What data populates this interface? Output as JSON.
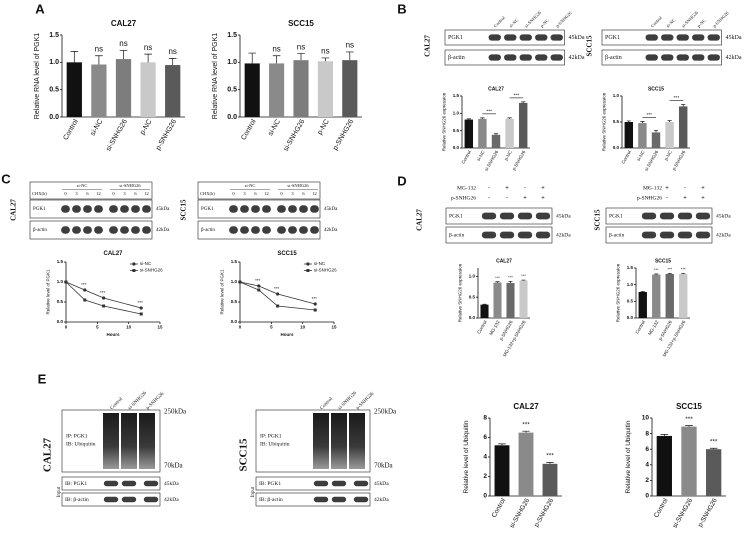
{
  "panel_labels": [
    "A",
    "B",
    "C",
    "D",
    "E"
  ],
  "chart_data": [
    {
      "type": "bar",
      "title": "CAL27",
      "ylabel": "Relative RNA level of PGK1",
      "categories": [
        "Control",
        "si-NC",
        "si-SNHG26",
        "p-NC",
        "p-SNHG26"
      ],
      "values": [
        1.0,
        0.96,
        1.06,
        1.0,
        0.95
      ],
      "errors": [
        0.2,
        0.16,
        0.16,
        0.15,
        0.12
      ],
      "colors": [
        "#111111",
        "#8a8a8a",
        "#7d7d7d",
        "#c9c9c9",
        "#5a5a5a"
      ],
      "ylim": [
        0,
        1.5
      ],
      "yticks": [
        {
          "value": 0,
          "label": "0.0"
        },
        0.5,
        {
          "value": 1,
          "label": "1.0"
        },
        1.5
      ],
      "annotations": [
        null,
        "ns",
        "ns",
        "ns",
        "ns"
      ]
    },
    {
      "type": "bar",
      "title": "SCC15",
      "ylabel": "Relative RNA level of PGK1",
      "categories": [
        "Control",
        "si-NC",
        "si-SNHG26",
        "p-NC",
        "p-SNHG26"
      ],
      "values": [
        0.98,
        0.98,
        1.04,
        1.02,
        1.04
      ],
      "errors": [
        0.19,
        0.14,
        0.12,
        0.06,
        0.15
      ],
      "colors": [
        "#111111",
        "#8a8a8a",
        "#7d7d7d",
        "#c9c9c9",
        "#5a5a5a"
      ],
      "ylim": [
        0,
        1.5
      ],
      "yticks": [
        {
          "value": 0,
          "label": "0.0"
        },
        0.5,
        {
          "value": 1,
          "label": "1.0"
        },
        1.5
      ],
      "annotations": [
        null,
        "ns",
        "ns",
        "ns",
        "ns"
      ]
    },
    {
      "type": "bar",
      "title": "CAL27",
      "ylabel": "Relative SNHG26 expression",
      "categories": [
        "Control",
        "si-NC",
        "si-SNHG26",
        "p-NC",
        "p-SNHG26"
      ],
      "values": [
        0.82,
        0.84,
        0.38,
        0.84,
        1.3
      ],
      "errors": [
        0.02,
        0.03,
        0.03,
        0.03,
        0.03
      ],
      "colors": [
        "#111111",
        "#8a8a8a",
        "#6a6a6a",
        "#c9c9c9",
        "#5a5a5a"
      ],
      "ylim": [
        0,
        1.5
      ],
      "yticks": [
        {
          "value": 0,
          "label": "0.0"
        },
        0.5,
        {
          "value": 1,
          "label": "1.0"
        },
        1.5
      ],
      "annotations": [
        null,
        null,
        "***",
        null,
        "***"
      ],
      "brackets": true
    },
    {
      "type": "bar",
      "title": "SCC15",
      "ylabel": "Relative SNHG26 expression",
      "categories": [
        "Control",
        "si-NC",
        "si-SNHG26",
        "p-NC",
        "p-SNHG26"
      ],
      "values": [
        0.5,
        0.48,
        0.3,
        0.5,
        0.8
      ],
      "errors": [
        0.02,
        0.03,
        0.04,
        0.03,
        0.04
      ],
      "colors": [
        "#111111",
        "#8a8a8a",
        "#6a6a6a",
        "#c9c9c9",
        "#5a5a5a"
      ],
      "ylim": [
        0,
        1
      ],
      "yticks": [
        {
          "value": 0,
          "label": "0.0"
        },
        0.5,
        {
          "value": 1,
          "label": "1.0"
        }
      ],
      "annotations": [
        null,
        null,
        "***",
        null,
        "***"
      ],
      "brackets": true
    },
    {
      "type": "line",
      "title": "CAL27",
      "xlabel": "Hours",
      "ylabel": "Relative level of PGK1",
      "x": [
        0,
        3,
        6,
        12
      ],
      "series": [
        {
          "name": "si-NC",
          "color": "#333333",
          "marker": "circle",
          "values": [
            1.0,
            0.8,
            0.6,
            0.35
          ]
        },
        {
          "name": "si-SNHG26",
          "color": "#333333",
          "marker": "square",
          "values": [
            1.0,
            0.55,
            0.4,
            0.2
          ]
        }
      ],
      "xlim": [
        0,
        15
      ],
      "xticks": [
        0,
        5,
        10,
        15
      ],
      "ylim": [
        0,
        1.5
      ],
      "yticks": [
        {
          "value": 0,
          "label": "0.0"
        },
        0.5,
        {
          "value": 1,
          "label": "1.0"
        },
        1.5
      ],
      "legend": "upper right",
      "annotations": [
        null,
        "***",
        "***",
        "***"
      ]
    },
    {
      "type": "line",
      "title": "SCC15",
      "xlabel": "Hours",
      "ylabel": "Relative level of PGK1",
      "x": [
        0,
        3,
        6,
        12
      ],
      "series": [
        {
          "name": "si-NC",
          "color": "#333333",
          "marker": "circle",
          "values": [
            1.0,
            0.9,
            0.7,
            0.45
          ]
        },
        {
          "name": "si-SNHG26",
          "color": "#333333",
          "marker": "square",
          "values": [
            1.0,
            0.8,
            0.4,
            0.3
          ]
        }
      ],
      "xlim": [
        0,
        15
      ],
      "xticks": [
        0,
        5,
        10,
        15
      ],
      "ylim": [
        0,
        1.5
      ],
      "yticks": [
        {
          "value": 0,
          "label": "0.0"
        },
        0.5,
        {
          "value": 1,
          "label": "1.0"
        },
        1.5
      ],
      "legend": "upper right",
      "annotations": [
        null,
        "***",
        "***",
        "***"
      ]
    },
    {
      "type": "bar",
      "title": "CAL27",
      "ylabel": "Relative SNHG26 expression",
      "categories": [
        "Control",
        "MG-132",
        "p-SNHG26",
        "MG-132+p-SNHG26"
      ],
      "values": [
        0.32,
        0.85,
        0.84,
        0.9
      ],
      "errors": [
        0.01,
        0.02,
        0.04,
        0.01
      ],
      "colors": [
        "#111111",
        "#8a8a8a",
        "#6a6a6a",
        "#c9c9c9"
      ],
      "ylim": [
        0,
        1.2
      ],
      "yticks": [
        {
          "value": 0,
          "label": "0.0"
        },
        0.5,
        {
          "value": 1,
          "label": "1.0"
        }
      ],
      "annotations": [
        null,
        "***",
        "***",
        "***"
      ]
    },
    {
      "type": "bar",
      "title": "SCC15",
      "ylabel": "Relative SNHG26 expression",
      "categories": [
        "Control",
        "MG-132",
        "p-SNHG26",
        "MG-132+p-SNHG26"
      ],
      "values": [
        0.78,
        1.3,
        1.32,
        1.32
      ],
      "errors": [
        0.02,
        0.02,
        0.02,
        0.02
      ],
      "colors": [
        "#111111",
        "#8a8a8a",
        "#6a6a6a",
        "#c9c9c9"
      ],
      "ylim": [
        0,
        1.5
      ],
      "yticks": [
        {
          "value": 0,
          "label": "0.0"
        },
        0.5,
        {
          "value": 1,
          "label": "1.0"
        },
        1.5
      ],
      "annotations": [
        null,
        "***",
        "***",
        "***"
      ]
    },
    {
      "type": "bar",
      "title": "CAL27",
      "ylabel": "Relative level of Ubiquitin",
      "categories": [
        "Control",
        "si-SNHG26",
        "p-SNHG26"
      ],
      "values": [
        5.2,
        6.5,
        3.3
      ],
      "errors": [
        0.15,
        0.15,
        0.15
      ],
      "colors": [
        "#111111",
        "#8a8a8a",
        "#5a5a5a"
      ],
      "ylim": [
        0,
        8
      ],
      "yticks": [
        0,
        2,
        4,
        6,
        8
      ],
      "annotations": [
        null,
        "***",
        "***"
      ]
    },
    {
      "type": "bar",
      "title": "SCC15",
      "ylabel": "Relative level of Ubiquitin",
      "categories": [
        "Control",
        "si-SNHG26",
        "p-SNHG26"
      ],
      "values": [
        7.7,
        8.9,
        6.0
      ],
      "errors": [
        0.2,
        0.12,
        0.12
      ],
      "colors": [
        "#111111",
        "#8a8a8a",
        "#5a5a5a"
      ],
      "ylim": [
        0,
        10
      ],
      "yticks": [
        0,
        2,
        4,
        6,
        8,
        10
      ],
      "annotations": [
        null,
        "***",
        "***"
      ]
    }
  ],
  "blots": {
    "B": [
      {
        "cell": "CAL27",
        "lanes": [
          "Control",
          "si-NC",
          "si-SNHG26",
          "p-NC",
          "p-SNHG26"
        ],
        "rows": [
          {
            "protein": "PGK1",
            "size": "45kDa"
          },
          {
            "protein": "β-actin",
            "size": "42kDa"
          }
        ]
      },
      {
        "cell": "SCC15",
        "lanes": [
          "Control",
          "si-NC",
          "si-SNHG26",
          "p-NC",
          "p-SNHG26"
        ],
        "rows": [
          {
            "protein": "PGK1",
            "size": "45kDa"
          },
          {
            "protein": "β-actin",
            "size": "42kDa"
          }
        ]
      }
    ],
    "C": [
      {
        "cell": "CAL27",
        "groups": [
          "si-NC",
          "si-SNHG26"
        ],
        "time_label": "CHX(h)",
        "times": [
          "0",
          "3",
          "6",
          "12"
        ],
        "rows": [
          {
            "protein": "PGK1",
            "size": "45kDa"
          },
          {
            "protein": "β-actin",
            "size": "42kDa"
          }
        ]
      },
      {
        "cell": "SCC15",
        "groups": [
          "si-NC",
          "si-SNHG26"
        ],
        "time_label": "CHX(h)",
        "times": [
          "0",
          "3",
          "6",
          "12"
        ],
        "rows": [
          {
            "protein": "PGK1",
            "size": "45kDa"
          },
          {
            "protein": "β-actin",
            "size": "42kDa"
          }
        ]
      }
    ],
    "D": [
      {
        "cell": "CAL27",
        "treatments": [
          {
            "name": "MG-132",
            "signs": [
              "-",
              "+",
              "-",
              "+"
            ]
          },
          {
            "name": "p-SNHG26",
            "signs": [
              "-",
              "-",
              "+",
              "+"
            ]
          }
        ],
        "rows": [
          {
            "protein": "PGK1",
            "size": "45kDa"
          },
          {
            "protein": "β-actin",
            "size": "42kDa"
          }
        ]
      },
      {
        "cell": "SCC15",
        "treatments": [
          {
            "name": "MG-132",
            "signs": [
              "-",
              "+",
              "-",
              "+"
            ]
          },
          {
            "name": "p-SNHG26",
            "signs": [
              "-",
              "-",
              "+",
              "+"
            ]
          }
        ],
        "rows": [
          {
            "protein": "PGK1",
            "size": "45kDa"
          },
          {
            "protein": "β-actin",
            "size": "42kDa"
          }
        ]
      }
    ],
    "E": [
      {
        "cell": "CAL27",
        "lanes": [
          "Control",
          "si-SNHG26",
          "p-SNHG26"
        ],
        "ip_rows": [
          "IP: PGK1",
          "IB: Ubiquitin"
        ],
        "ip_sizes": [
          "250kDa",
          "70kDa"
        ],
        "input_label": "Input",
        "rows": [
          {
            "protein": "IB:  PGK1",
            "size": "45kDa"
          },
          {
            "protein": "IB:  β-actin",
            "size": "42kDa"
          }
        ]
      },
      {
        "cell": "SCC15",
        "lanes": [
          "Control",
          "si-SNHG26",
          "p-SNHG26"
        ],
        "ip_rows": [
          "IP: PGK1",
          "IB: Ubiquitin"
        ],
        "ip_sizes": [
          "250kDa",
          "70kDa"
        ],
        "input_label": "Input",
        "rows": [
          {
            "protein": "IB:  PGK1",
            "size": "45kDa"
          },
          {
            "protein": "IB:  β-actin",
            "size": "42kDa"
          }
        ]
      }
    ]
  }
}
